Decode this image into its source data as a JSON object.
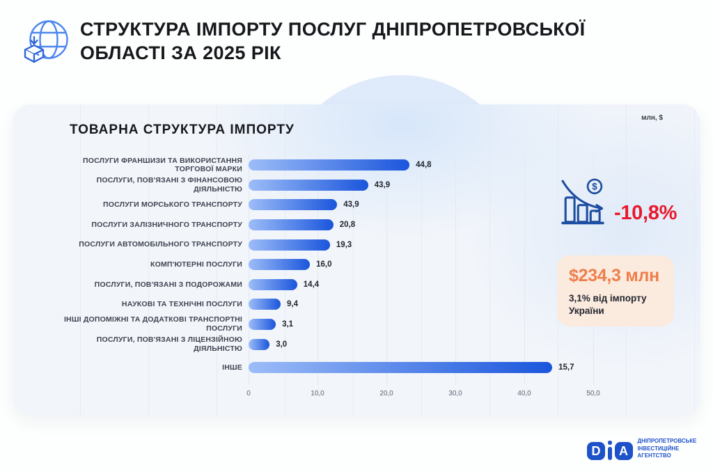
{
  "header": {
    "logo_icon": "globe-import-icon",
    "title_line1": "СТРУКТУРА ІМПОРТУ ПОСЛУГ ДНІПРОПЕТРОВСЬКОЇ",
    "title_line2": "ОБЛАСТІ ЗА 2025 РІК"
  },
  "panel": {
    "chart_title": "ТОВАРНА СТРУКТУРА ІМПОРТУ",
    "units_label": "млн, $"
  },
  "chart_data": {
    "type": "bar",
    "orientation": "horizontal",
    "title": "ТОВАРНА СТРУКТУРА ІМПОРТУ",
    "units": "млн, $",
    "xlim": [
      0,
      50
    ],
    "x_ticks": [
      "0",
      "10,0",
      "20,0",
      "30,0",
      "40,0",
      "50,0"
    ],
    "grid": true,
    "categories": [
      "ПОСЛУГИ ФРАНШИЗИ ТА ВИКОРИСТАННЯ ТОРГОВОЇ МАРКИ",
      "ПОСЛУГИ, ПОВ'ЯЗАНІ З ФІНАНСОВОЮ ДІЯЛЬНІСТЮ",
      "ПОСЛУГИ МОРСЬКОГО ТРАНСПОРТУ",
      "ПОСЛУГИ ЗАЛІЗНИЧНОГО ТРАНСПОРТУ",
      "ПОСЛУГИ АВТОМОБІЛЬНОГО ТРАНСПОРТУ",
      "КОМП'ЮТЕРНІ ПОСЛУГИ",
      "ПОСЛУГИ, ПОВ'ЯЗАНІ З ПОДОРОЖАМИ",
      "НАУКОВІ ТА ТЕХНІЧНІ ПОСЛУГИ",
      "ІНШІ ДОПОМІЖНІ ТА ДОДАТКОВІ ТРАНСПОРТНІ ПОСЛУГИ",
      "ПОСЛУГИ, ПОВ'ЯЗАНІ З ЛІЦЕНЗІЙНОЮ ДІЯЛЬНІСТЮ",
      "ІНШЕ"
    ],
    "values": [
      44.8,
      43.9,
      43.9,
      20.8,
      19.3,
      16.0,
      14.4,
      9.4,
      3.1,
      3.0,
      15.7
    ],
    "value_labels": [
      "44,8",
      "43,9",
      "43,9",
      "20,8",
      "19,3",
      "16,0",
      "14,4",
      "9,4",
      "3,1",
      "3,0",
      "15,7"
    ],
    "bar_length_pct": [
      46.7,
      34.7,
      25.7,
      24.6,
      23.6,
      17.8,
      14.1,
      9.3,
      7.9,
      6.1,
      88.1
    ],
    "bar_gradient_start": "#9DBDF8",
    "bar_gradient_end": "#1A55DC",
    "legend": "none"
  },
  "highlights": {
    "trend_icon": "declining-bars-dollar-icon",
    "percent_change": "-10,8%",
    "percent_color": "#E8192C",
    "card": {
      "value": "$234,3 млн",
      "value_color": "#EF7E4B",
      "subtext": "3,1% від імпорту України",
      "bg_color": "#FBEADE"
    }
  },
  "footer": {
    "logo_letter_d": "D",
    "logo_letter_a": "A",
    "org_line1": "ДНІПРОПЕТРОВСЬКЕ",
    "org_line2": "ІНВЕСТИЦІЙНЕ АГЕНТСТВО",
    "brand_color": "#1D52C8"
  }
}
